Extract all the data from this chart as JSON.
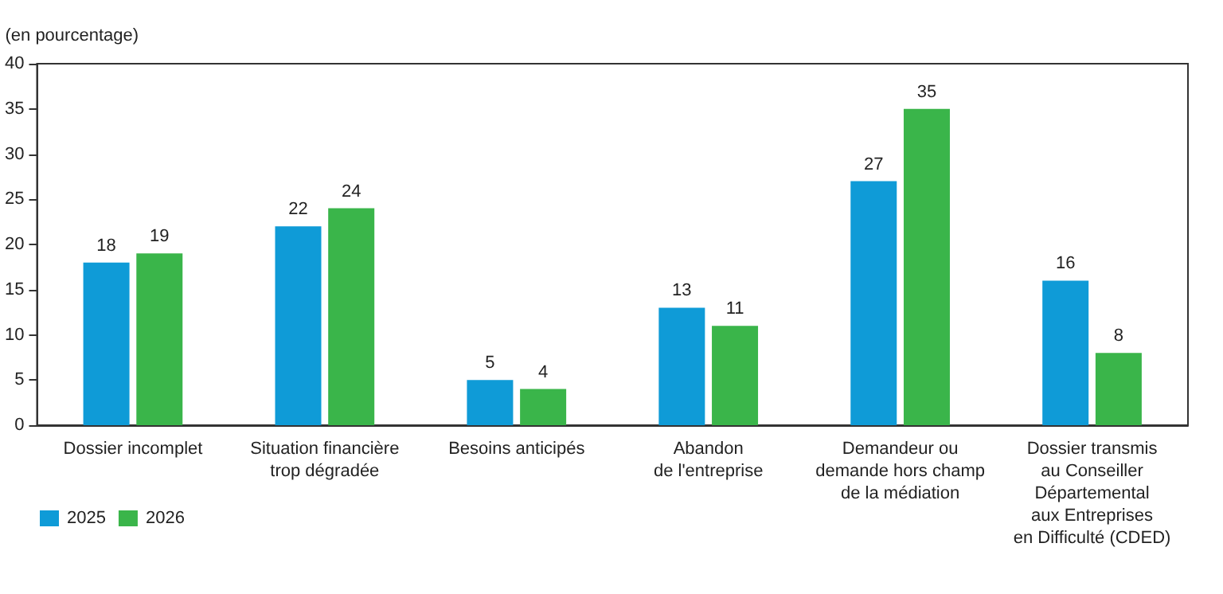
{
  "chart_data": {
    "type": "bar",
    "ylabel": "(en pourcentage)",
    "categories": [
      "Dossier incomplet",
      "Situation financière\ntrop dégradée",
      "Besoins anticipés",
      "Abandon\nde l'entreprise",
      "Demandeur ou\ndemande hors champ\nde la médiation",
      "Dossier transmis\nau Conseiller\nDépartemental\naux Entreprises\nen Difficulté (CDED)"
    ],
    "series": [
      {
        "name": "2025",
        "color": "#0f9bd7",
        "values": [
          18,
          22,
          5,
          13,
          27,
          16
        ]
      },
      {
        "name": "2026",
        "color": "#3ab54a",
        "values": [
          19,
          24,
          4,
          11,
          35,
          8
        ]
      }
    ],
    "ylim": [
      0,
      40
    ],
    "yticks": [
      0,
      5,
      10,
      15,
      20,
      25,
      30,
      35,
      40
    ],
    "grid": false,
    "legend": "bottom left",
    "data_labels": true
  }
}
